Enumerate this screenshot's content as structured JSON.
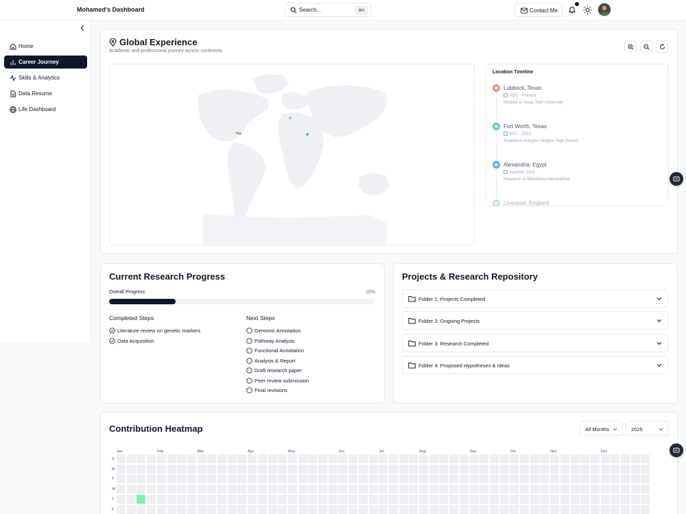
{
  "header": {
    "brand": "Mohamed's Dashboard",
    "search_placeholder": "Search...",
    "search_shortcut": "⌘K",
    "contact_label": "Contact Me"
  },
  "sidebar": {
    "items": [
      {
        "label": "Home",
        "icon": "home-icon",
        "active": false
      },
      {
        "label": "Career Journey",
        "icon": "bar-chart-icon",
        "active": true
      },
      {
        "label": "Skills & Analytics",
        "icon": "activity-icon",
        "active": false
      },
      {
        "label": "Data Resume",
        "icon": "file-text-icon",
        "active": false
      },
      {
        "label": "Life Dashboard",
        "icon": "globe-icon",
        "active": false
      }
    ]
  },
  "global": {
    "title": "Global Experience",
    "subtitle": "Academic and professional journey across continents",
    "timeline_title": "Location Timeline",
    "locations": [
      {
        "place": "Lubbock, Texas",
        "date": "2021 - Present",
        "desc": "Studied at Texas Tech University",
        "color": "#f28b82"
      },
      {
        "place": "Fort Worth, Texas",
        "date": "2017 - 2021",
        "desc": "Studied at Arlington Heights High School",
        "color": "#5cc7c0"
      },
      {
        "place": "Alexandria, Egypt",
        "date": "Summer 2023",
        "desc": "Research at Bibliotheca Alexandrina",
        "color": "#4fb3d9"
      },
      {
        "place": "Liverpool, England",
        "date": "",
        "desc": "",
        "color": "#7fd1b9"
      }
    ]
  },
  "research": {
    "title": "Current Research Progress",
    "overall_label": "Overall Progress",
    "percent_label": "25%",
    "progress": 0.25,
    "completed_title": "Completed Steps",
    "next_title": "Next Steps",
    "completed": [
      "Literature review on genetic markers",
      "Data Acquisition"
    ],
    "next": [
      "Genomic Annotation",
      "Pathway Analysis",
      "Functional Annotation",
      "Analysis & Report",
      "Draft research paper",
      "Peer review submission",
      "Final revisions"
    ]
  },
  "repository": {
    "title": "Projects & Research Repository",
    "folders": [
      "Folder 1: Projects Completed",
      "Folder 2: Ongoing Projects",
      "Folder 3: Research Completed",
      "Folder 4: Proposed Hypotheses & Ideas"
    ]
  },
  "heatmap": {
    "title": "Contribution Heatmap",
    "month_filter": "All Months",
    "year_filter": "2025",
    "months": [
      "Jan",
      "Feb",
      "Mar",
      "Apr",
      "May",
      "Jun",
      "Jul",
      "Aug",
      "Sep",
      "Oct",
      "Nov",
      "Dec"
    ],
    "days": [
      "S",
      "M",
      "T",
      "W",
      "T",
      "F"
    ],
    "active_cells": [
      {
        "week": 2,
        "day": 4
      }
    ]
  }
}
